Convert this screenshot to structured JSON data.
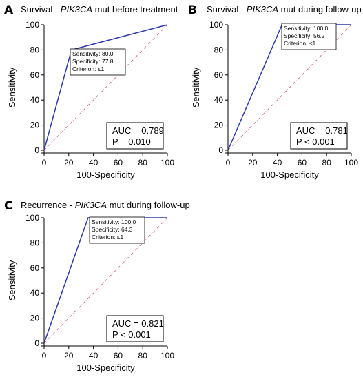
{
  "chart_data": [
    {
      "type": "line",
      "panel_label": "A",
      "title_prefix": "Survival - ",
      "title_gene": "PIK3CA",
      "title_suffix": " mut before treatment",
      "xlabel": "100-Specificity",
      "ylabel": "Sensitivity",
      "xlim": [
        0,
        100
      ],
      "ylim": [
        0,
        100
      ],
      "xticks": [
        0,
        20,
        40,
        60,
        80,
        100
      ],
      "yticks": [
        0,
        20,
        40,
        60,
        80,
        100
      ],
      "roc": {
        "x": [
          0,
          22.2,
          100
        ],
        "y": [
          0,
          80.0,
          100
        ]
      },
      "reference": {
        "x": [
          0,
          100
        ],
        "y": [
          0,
          100
        ]
      },
      "annotation": {
        "sensitivity": "Sensitivity: 80.0",
        "specificity": "Specificity: 77.8",
        "criterion": "Criterion: ≤1"
      },
      "auc": "AUC = 0.789",
      "p": "P = 0.010"
    },
    {
      "type": "line",
      "panel_label": "B",
      "title_prefix": "Survival - ",
      "title_gene": "PIK3CA",
      "title_suffix": " mut during follow-up",
      "xlabel": "100-Specificity",
      "ylabel": "Sensitivity",
      "xlim": [
        0,
        100
      ],
      "ylim": [
        0,
        100
      ],
      "xticks": [
        0,
        20,
        40,
        60,
        80,
        100
      ],
      "yticks": [
        0,
        20,
        40,
        60,
        80,
        100
      ],
      "roc": {
        "x": [
          0,
          43.8,
          100
        ],
        "y": [
          0,
          100.0,
          100
        ]
      },
      "reference": {
        "x": [
          0,
          100
        ],
        "y": [
          0,
          100
        ]
      },
      "annotation": {
        "sensitivity": "Sensitivity: 100.0",
        "specificity": "Specificity: 56.2",
        "criterion": "Criterion: ≤1"
      },
      "auc": "AUC = 0.781",
      "p": "P < 0.001"
    },
    {
      "type": "line",
      "panel_label": "C",
      "title_prefix": "Recurrence - ",
      "title_gene": "PIK3CA",
      "title_suffix": " mut during follow-up",
      "xlabel": "100-Specificity",
      "ylabel": "Sensitivity",
      "xlim": [
        0,
        100
      ],
      "ylim": [
        0,
        100
      ],
      "xticks": [
        0,
        20,
        40,
        60,
        80,
        100
      ],
      "yticks": [
        0,
        20,
        40,
        60,
        80,
        100
      ],
      "roc": {
        "x": [
          0,
          35.7,
          100
        ],
        "y": [
          0,
          100.0,
          100
        ]
      },
      "reference": {
        "x": [
          0,
          100
        ],
        "y": [
          0,
          100
        ]
      },
      "annotation": {
        "sensitivity": "Sensitivity: 100.0",
        "specificity": "Specificity: 64.3",
        "criterion": "Criterion: ≤1"
      },
      "auc": "AUC = 0.821",
      "p": "P < 0.001"
    }
  ],
  "colors": {
    "roc": "#2b3aa8",
    "reference": "#d9667a",
    "axis": "#000000"
  }
}
